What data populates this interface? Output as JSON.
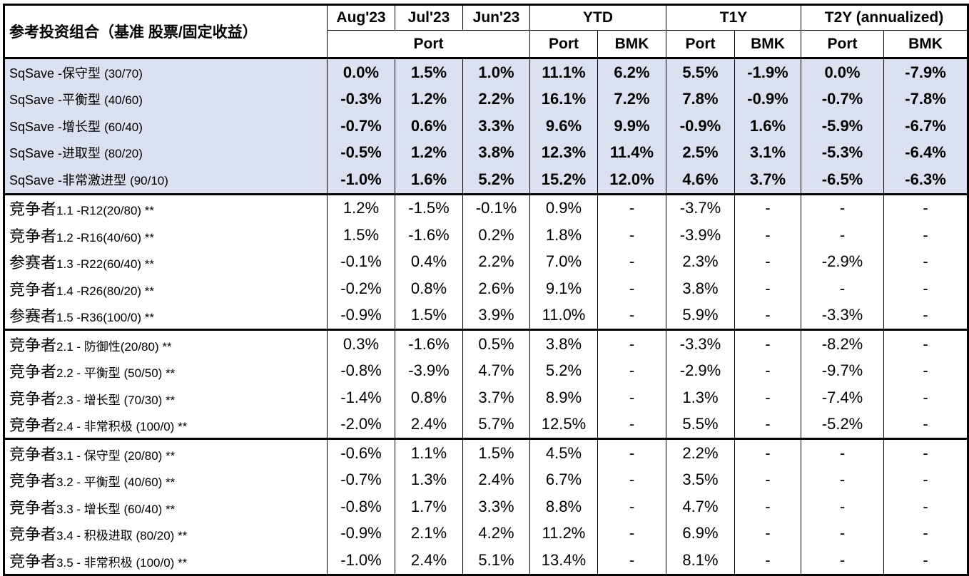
{
  "header": {
    "corner": "参考投资组合（基准 股票/固定收益）",
    "columns": [
      "Aug'23",
      "Jul'23",
      "Jun'23",
      "YTD",
      "T1Y",
      "T2Y (annualized)"
    ],
    "sub_port_group": "Port",
    "sub": [
      "Port",
      "BMK",
      "Port",
      "BMK",
      "Port",
      "BMK"
    ]
  },
  "groups": [
    {
      "highlight": true,
      "rows": [
        {
          "name": "SqSave -保守型",
          "ratio": "(30/70)",
          "values": [
            "0.0%",
            "1.5%",
            "1.0%",
            "11.1%",
            "6.2%",
            "5.5%",
            "-1.9%",
            "0.0%",
            "-7.9%"
          ]
        },
        {
          "name": "SqSave -平衡型",
          "ratio": "(40/60)",
          "values": [
            "-0.3%",
            "1.2%",
            "2.2%",
            "16.1%",
            "7.2%",
            "7.8%",
            "-0.9%",
            "-0.7%",
            "-7.8%"
          ]
        },
        {
          "name": "SqSave -增长型",
          "ratio": "(60/40)",
          "values": [
            "-0.7%",
            "0.6%",
            "3.3%",
            "9.6%",
            "9.9%",
            "-0.9%",
            "1.6%",
            "-5.9%",
            "-6.7%"
          ]
        },
        {
          "name": "SqSave -进取型",
          "ratio": "(80/20)",
          "values": [
            "-0.5%",
            "1.2%",
            "3.8%",
            "12.3%",
            "11.4%",
            "2.5%",
            "3.1%",
            "-5.3%",
            "-6.4%"
          ]
        },
        {
          "name": "SqSave -非常激进型",
          "ratio": "(90/10)",
          "values": [
            "-1.0%",
            "1.6%",
            "5.2%",
            "15.2%",
            "12.0%",
            "4.6%",
            "3.7%",
            "-6.5%",
            "-6.3%"
          ]
        }
      ]
    },
    {
      "highlight": false,
      "rows": [
        {
          "name": "竞争者",
          "ratio": "1.1 -R12(20/80) **",
          "values": [
            "1.2%",
            "-1.5%",
            "-0.1%",
            "0.9%",
            "-",
            "-3.7%",
            "-",
            "-",
            "-"
          ]
        },
        {
          "name": "竞争者",
          "ratio": "1.2 -R16(40/60) **",
          "values": [
            "1.5%",
            "-1.6%",
            "0.2%",
            "1.8%",
            "-",
            "-3.9%",
            "-",
            "-",
            "-"
          ]
        },
        {
          "name": "参赛者",
          "ratio": "1.3 -R22(60/40) **",
          "values": [
            "-0.1%",
            "0.4%",
            "2.2%",
            "7.0%",
            "-",
            "2.3%",
            "-",
            "-2.9%",
            "-"
          ]
        },
        {
          "name": "竞争者",
          "ratio": "1.4 -R26(80/20) **",
          "values": [
            "-0.2%",
            "0.8%",
            "2.6%",
            "9.1%",
            "-",
            "3.8%",
            "-",
            "-",
            "-"
          ]
        },
        {
          "name": "参赛者",
          "ratio": "1.5 -R36(100/0) **",
          "values": [
            "-0.9%",
            "1.5%",
            "3.9%",
            "11.0%",
            "-",
            "5.9%",
            "-",
            "-3.3%",
            "-"
          ]
        }
      ]
    },
    {
      "highlight": false,
      "rows": [
        {
          "name": "竞争者",
          "ratio": "2.1 - 防御性(20/80) **",
          "values": [
            "0.3%",
            "-1.6%",
            "0.5%",
            "3.8%",
            "-",
            "-3.3%",
            "-",
            "-8.2%",
            "-"
          ]
        },
        {
          "name": "竞争者",
          "ratio": "2.2 - 平衡型 (50/50) **",
          "values": [
            "-0.8%",
            "-3.9%",
            "4.7%",
            "5.2%",
            "-",
            "-2.9%",
            "-",
            "-9.7%",
            "-"
          ]
        },
        {
          "name": "竞争者",
          "ratio": "2.3 - 增长型 (70/30) **",
          "values": [
            "-1.4%",
            "0.8%",
            "3.7%",
            "8.9%",
            "-",
            "1.3%",
            "-",
            "-7.4%",
            "-"
          ]
        },
        {
          "name": "竞争者",
          "ratio": "2.4 - 非常积极 (100/0) **",
          "values": [
            "-2.0%",
            "2.4%",
            "5.7%",
            "12.5%",
            "-",
            "5.5%",
            "-",
            "-5.2%",
            "-"
          ]
        }
      ]
    },
    {
      "highlight": false,
      "rows": [
        {
          "name": "竞争者",
          "ratio": "3.1 - 保守型 (20/80) **",
          "values": [
            "-0.6%",
            "1.1%",
            "1.5%",
            "4.5%",
            "-",
            "2.2%",
            "-",
            "-",
            "-"
          ]
        },
        {
          "name": "竞争者",
          "ratio": "3.2 - 平衡型 (40/60) **",
          "values": [
            "-0.7%",
            "1.3%",
            "2.4%",
            "6.7%",
            "-",
            "3.5%",
            "-",
            "-",
            "-"
          ]
        },
        {
          "name": "竞争者",
          "ratio": "3.3 - 增长型 (60/40) **",
          "values": [
            "-0.8%",
            "1.7%",
            "3.3%",
            "8.8%",
            "-",
            "4.7%",
            "-",
            "-",
            "-"
          ]
        },
        {
          "name": "竞争者",
          "ratio": "3.4 - 积极进取 (80/20) **",
          "values": [
            "-0.9%",
            "2.1%",
            "4.2%",
            "11.2%",
            "-",
            "6.9%",
            "-",
            "-",
            "-"
          ]
        },
        {
          "name": "竞争者",
          "ratio": "3.5 - 非常积极 (100/0) **",
          "values": [
            "-1.0%",
            "2.4%",
            "5.1%",
            "13.4%",
            "-",
            "8.1%",
            "-",
            "-",
            "-"
          ]
        }
      ]
    }
  ]
}
